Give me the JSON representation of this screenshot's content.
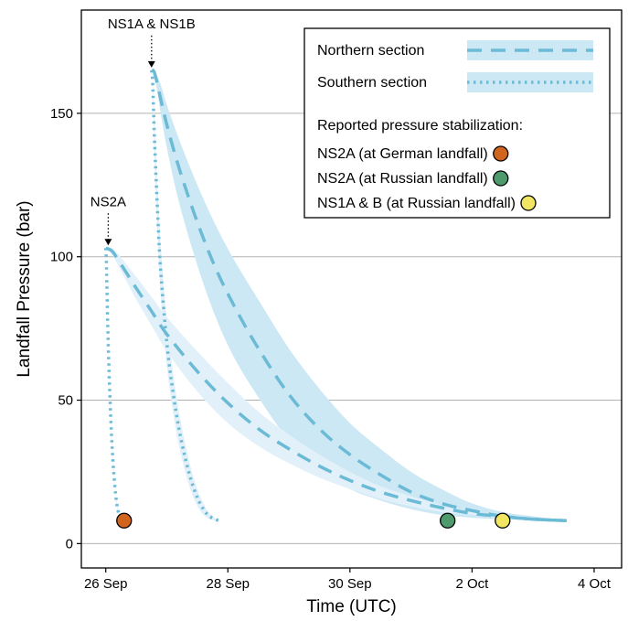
{
  "chart_data": {
    "type": "line",
    "xlabel": "Time (UTC)",
    "ylabel": "Landfall Pressure (bar)",
    "x_ticks": [
      {
        "value": 0,
        "label": "26 Sep"
      },
      {
        "value": 2,
        "label": "28 Sep"
      },
      {
        "value": 4,
        "label": "30 Sep"
      },
      {
        "value": 6,
        "label": "2 Oct"
      },
      {
        "value": 8,
        "label": "4 Oct"
      }
    ],
    "y_ticks": [
      {
        "value": 0,
        "label": "0"
      },
      {
        "value": 50,
        "label": "50"
      },
      {
        "value": 100,
        "label": "100"
      },
      {
        "value": 150,
        "label": "150"
      }
    ],
    "xlim": [
      -0.4,
      8.45
    ],
    "ylim": [
      -8.5,
      186
    ],
    "grid": "horizontal",
    "legend_position": "top-right",
    "colors": {
      "line": "#6bbad6",
      "band": "#cde8f5",
      "band_light": "#e2f1f9",
      "german_landfall": "#d2651d",
      "russian_landfall_ns2a": "#4e9a6c",
      "russian_landfall_ns1": "#f1e661"
    },
    "annotations": [
      {
        "text": "NS1A & NS1B",
        "x": 0.75,
        "y": 165
      },
      {
        "text": "NS2A",
        "x": 0.04,
        "y": 103
      }
    ],
    "series": [
      {
        "name": "Northern section",
        "style": "dashed",
        "pipeline": "NS1A & NS1B",
        "x": [
          0.75,
          0.8,
          0.9,
          1.0,
          1.2,
          1.5,
          1.8,
          2.1,
          2.5,
          3.0,
          3.5,
          4.0,
          4.5,
          5.0,
          5.5,
          6.0,
          6.5,
          7.0,
          7.55
        ],
        "y": [
          165,
          164,
          155,
          146,
          131,
          112,
          96,
          83,
          68,
          52,
          40,
          31,
          24,
          18,
          14,
          11.5,
          9.5,
          8.5,
          8
        ],
        "y_low": [
          165,
          163,
          150,
          138,
          119,
          97,
          79,
          65,
          51,
          36,
          26,
          19,
          15,
          12,
          10,
          9,
          8.5,
          8.2,
          8
        ],
        "y_high": [
          165,
          165,
          160,
          153,
          141,
          125,
          111,
          99,
          85,
          68,
          54,
          42,
          33,
          25,
          19,
          14,
          11,
          9.5,
          8
        ]
      },
      {
        "name": "Northern section",
        "style": "dashed",
        "pipeline": "NS2A",
        "x": [
          0.0,
          0.1,
          0.2,
          0.35,
          0.5,
          0.75,
          1.0,
          1.5,
          2.0,
          2.5,
          3.0,
          3.5,
          4.0,
          4.5,
          5.0,
          5.5,
          6.0,
          6.5,
          7.0,
          7.55
        ],
        "y": [
          103,
          102,
          99,
          94,
          89,
          81,
          73,
          60,
          49,
          40,
          33,
          27,
          22,
          18,
          15,
          12.5,
          10.5,
          9.5,
          8.5,
          8
        ],
        "y_low": [
          103,
          101,
          97,
          91,
          85,
          76,
          67,
          53,
          42,
          34,
          28,
          23,
          19,
          15.5,
          13,
          11,
          10,
          9,
          8.5,
          8
        ],
        "y_high": [
          103,
          103,
          101,
          97,
          93,
          86,
          79,
          67,
          56,
          46,
          38,
          31,
          25,
          20,
          16.5,
          13.5,
          11,
          9.5,
          8.5,
          8
        ]
      },
      {
        "name": "Southern section",
        "style": "dotted",
        "pipeline": "NS1A & NS1B",
        "x": [
          0.75,
          0.77,
          0.8,
          0.85,
          0.9,
          1.0,
          1.1,
          1.2,
          1.3,
          1.4,
          1.5,
          1.6,
          1.7,
          1.85
        ],
        "y": [
          165,
          160,
          140,
          115,
          95,
          70,
          53,
          40,
          30,
          22,
          16,
          12,
          9.5,
          8
        ],
        "y_low": [
          165,
          158,
          134,
          107,
          86,
          62,
          46,
          34,
          25,
          18,
          13,
          10,
          8.5,
          8
        ],
        "y_high": [
          165,
          162,
          146,
          123,
          104,
          78,
          60,
          46,
          35,
          26,
          19,
          14,
          10.5,
          8
        ]
      },
      {
        "name": "Southern section",
        "style": "dotted",
        "pipeline": "NS2A",
        "x": [
          0.0,
          0.01,
          0.03,
          0.06,
          0.1,
          0.14,
          0.18,
          0.22,
          0.27
        ],
        "y": [
          103,
          98,
          78,
          56,
          35,
          22,
          14,
          10,
          8
        ],
        "y_low": [
          103,
          97,
          76,
          54,
          33,
          21,
          13,
          9.5,
          8
        ],
        "y_high": [
          103,
          99,
          80,
          58,
          37,
          23,
          15,
          10.5,
          8
        ]
      }
    ],
    "markers": [
      {
        "name": "NS2A (at German landfall)",
        "x": 0.3,
        "y": 8,
        "color": "#d2651d"
      },
      {
        "name": "NS2A (at Russian landfall)",
        "x": 5.6,
        "y": 8,
        "color": "#4e9a6c"
      },
      {
        "name": "NS1A & B (at Russian landfall)",
        "x": 6.5,
        "y": 8,
        "color": "#f1e661"
      }
    ],
    "legend": {
      "line_items": [
        "Northern section",
        "Southern section"
      ],
      "header": "Reported pressure stabilization:",
      "marker_items": [
        {
          "label": "NS2A (at German landfall)",
          "color": "#d2651d"
        },
        {
          "label": "NS2A (at Russian landfall)",
          "color": "#4e9a6c"
        },
        {
          "label": "NS1A & B (at Russian landfall)",
          "color": "#f1e661"
        }
      ]
    }
  }
}
